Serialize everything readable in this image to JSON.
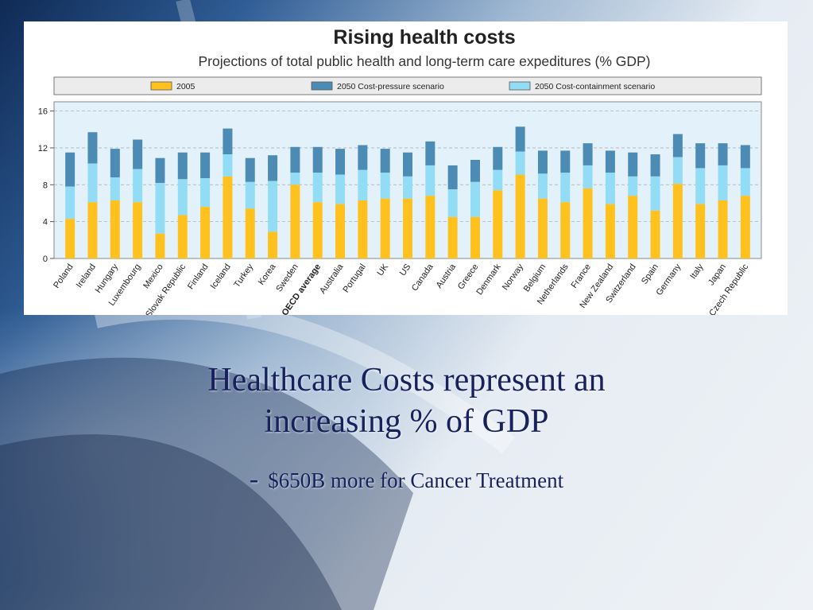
{
  "slide": {
    "headline_line1": "Healthcare Costs represent an",
    "headline_line2": "increasing % of GDP",
    "bullet_dash": "-",
    "subline": "$650B more for Cancer Treatment"
  },
  "colors": {
    "y2005": "#ffc11e",
    "cost_containment": "#92dcf5",
    "cost_pressure": "#4c8bb3",
    "plot_bg": "#e3f2fa",
    "legend_bg": "#ececec"
  },
  "chart_data": {
    "type": "bar",
    "title": "Rising health costs",
    "subtitle": "Projections of total public health and long-term care expeditures (% GDP)",
    "legend": [
      "2005",
      "2050 Cost-pressure scenario",
      "2050 Cost-containment scenario"
    ],
    "legend_position": "top",
    "ylim": [
      0,
      17
    ],
    "yticks": [
      0,
      4,
      8,
      12,
      16
    ],
    "grid": "dashed-horizontal",
    "categories": [
      "Poland",
      "Ireland",
      "Hungary",
      "Luxembourg",
      "Mexico",
      "Slovak Republic",
      "Finland",
      "Iceland",
      "Turkey",
      "Korea",
      "Sweden",
      "OECD average",
      "Australia",
      "Portugal",
      "UK",
      "US",
      "Canada",
      "Austria",
      "Greece",
      "Denmark",
      "Norway",
      "Belgium",
      "Netherlands",
      "France",
      "New Zealand",
      "Switzerland",
      "Spain",
      "Germany",
      "Italy",
      "Japan",
      "Czech Republic"
    ],
    "highlight_category": "OECD average",
    "series": [
      {
        "name": "2005",
        "values": [
          4.3,
          6.1,
          6.3,
          6.1,
          2.7,
          4.7,
          5.6,
          8.9,
          5.4,
          2.9,
          8.0,
          6.1,
          5.9,
          6.3,
          6.5,
          6.5,
          6.8,
          4.5,
          4.5,
          7.4,
          9.1,
          6.5,
          6.1,
          7.6,
          5.9,
          6.8,
          5.2,
          8.1,
          5.9,
          6.3,
          6.8
        ]
      },
      {
        "name": "2050 Cost-containment scenario",
        "values": [
          7.8,
          10.3,
          8.8,
          9.7,
          8.2,
          8.6,
          8.7,
          11.3,
          8.3,
          8.4,
          9.3,
          9.3,
          9.1,
          9.6,
          9.3,
          8.9,
          10.1,
          7.5,
          8.3,
          9.6,
          11.6,
          9.2,
          9.3,
          10.1,
          9.3,
          8.9,
          8.9,
          11.0,
          9.8,
          10.1,
          9.8
        ]
      },
      {
        "name": "2050 Cost-pressure scenario",
        "values": [
          11.5,
          13.7,
          11.9,
          12.9,
          10.9,
          11.5,
          11.5,
          14.1,
          10.9,
          11.2,
          12.1,
          12.1,
          11.9,
          12.3,
          11.9,
          11.5,
          12.7,
          10.1,
          10.7,
          12.1,
          14.3,
          11.7,
          11.7,
          12.5,
          11.7,
          11.5,
          11.3,
          13.5,
          12.5,
          12.5,
          12.3
        ]
      }
    ]
  }
}
